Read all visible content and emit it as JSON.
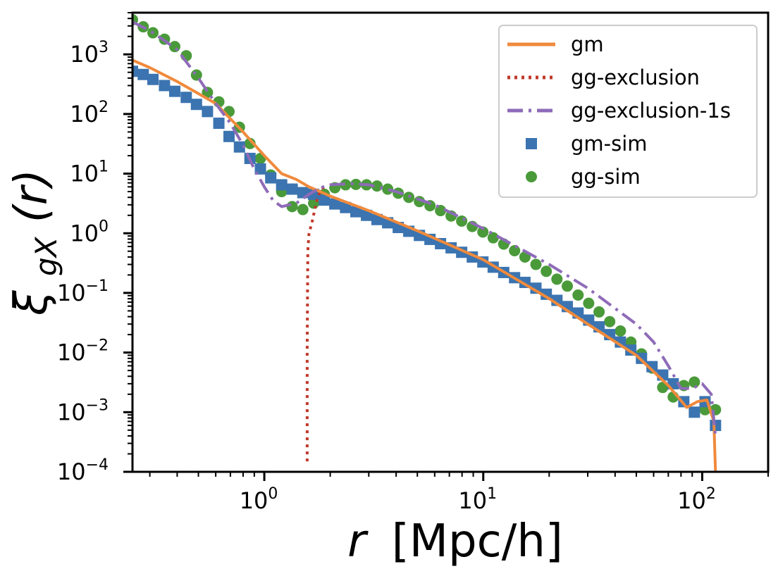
{
  "chart_data": {
    "type": "line",
    "title": "",
    "xlabel": "r [Mpc/h]",
    "xlabel_var": "r",
    "xlabel_units": "[Mpc/h]",
    "ylabel": "ξgX(r)",
    "ylabel_main": "ξ",
    "ylabel_sub": "gX",
    "ylabel_arg": "(r)",
    "xscale": "log",
    "yscale": "log",
    "xlim": [
      0.25,
      200
    ],
    "ylim": [
      0.0001,
      5000
    ],
    "legend_position": "top-right",
    "colors": {
      "gm": "#f08a3c",
      "gg_exclusion": "#c0392b",
      "gg_exclusion_1s": "#8e6bb8",
      "gm_sim": "#3b74b0",
      "gg_sim": "#4a9a3a"
    },
    "x_ticks": [
      {
        "base": "10",
        "exp": "0",
        "value": 1
      },
      {
        "base": "10",
        "exp": "1",
        "value": 10
      },
      {
        "base": "10",
        "exp": "2",
        "value": 100
      }
    ],
    "y_ticks": [
      {
        "base": "10",
        "exp": "3",
        "value": 1000
      },
      {
        "base": "10",
        "exp": "2",
        "value": 100
      },
      {
        "base": "10",
        "exp": "1",
        "value": 10
      },
      {
        "base": "10",
        "exp": "0",
        "value": 1
      },
      {
        "base": "10",
        "exp": "−1",
        "value": 0.1
      },
      {
        "base": "10",
        "exp": "−2",
        "value": 0.01
      },
      {
        "base": "10",
        "exp": "−3",
        "value": 0.001
      },
      {
        "base": "10",
        "exp": "−4",
        "value": 0.0001
      }
    ],
    "legend": [
      {
        "label": "gm",
        "key": "gm",
        "style": "solid"
      },
      {
        "label": "gg-exclusion",
        "key": "gg_exclusion",
        "style": "dotted"
      },
      {
        "label": "gg-exclusion-1s",
        "key": "gg_exclusion_1s",
        "style": "dashdot"
      },
      {
        "label": "gm-sim",
        "key": "gm_sim",
        "style": "square"
      },
      {
        "label": "gg-sim",
        "key": "gg_sim",
        "style": "circle"
      }
    ],
    "series": [
      {
        "name": "gm",
        "key": "gm",
        "kind": "line",
        "style": "solid",
        "x": [
          0.25,
          0.3,
          0.4,
          0.5,
          0.6,
          0.8,
          1.0,
          1.2,
          1.4,
          1.6,
          1.8,
          2,
          3,
          5,
          10,
          20,
          30,
          50,
          70,
          85,
          95,
          105,
          113,
          115
        ],
        "y": [
          800,
          600,
          350,
          220,
          150,
          50,
          20,
          10,
          8,
          6,
          5,
          4.2,
          2.4,
          1.1,
          0.36,
          0.08,
          0.03,
          0.009,
          0.0028,
          0.0012,
          0.0015,
          0.0016,
          0.0007,
          0.0001
        ]
      },
      {
        "name": "gg-exclusion",
        "key": "gg_exclusion",
        "kind": "line",
        "style": "dotted",
        "x": [
          1.57,
          1.57,
          1.575,
          1.58,
          1.6,
          1.65,
          1.7,
          1.75,
          1.8,
          1.85,
          1.9
        ],
        "y": [
          0.00015,
          0.01,
          0.1,
          0.5,
          1.0,
          1.5,
          2.5,
          4.0,
          5.0,
          5.8,
          6.2
        ]
      },
      {
        "name": "gg-exclusion-1s",
        "key": "gg_exclusion_1s",
        "kind": "line",
        "style": "dashdot",
        "x": [
          0.25,
          0.3,
          0.35,
          0.4,
          0.5,
          0.6,
          0.7,
          0.8,
          0.9,
          1.0,
          1.1,
          1.2,
          1.4,
          1.6,
          1.8,
          2,
          2.5,
          3,
          4,
          6,
          10,
          20,
          30,
          50,
          60,
          70,
          80,
          90,
          100,
          110,
          115
        ],
        "y": [
          3500,
          2500,
          1700,
          1200,
          400,
          150,
          70,
          30,
          12,
          6,
          3.5,
          2.8,
          3.2,
          4.5,
          5.8,
          6.5,
          6.8,
          6.5,
          5.0,
          3.0,
          1.2,
          0.3,
          0.12,
          0.03,
          0.015,
          0.006,
          0.0025,
          0.0025,
          0.003,
          0.002,
          0.0004
        ]
      },
      {
        "name": "gm-sim",
        "key": "gm_sim",
        "kind": "scatter",
        "marker": "square",
        "x": [
          0.25,
          0.28,
          0.31,
          0.35,
          0.39,
          0.44,
          0.49,
          0.55,
          0.62,
          0.69,
          0.77,
          0.86,
          0.96,
          1.07,
          1.2,
          1.34,
          1.5,
          1.68,
          1.88,
          2.1,
          2.35,
          2.62,
          2.93,
          3.27,
          3.66,
          4.09,
          4.57,
          5.11,
          5.71,
          6.38,
          7.13,
          7.97,
          8.91,
          9.96,
          11.1,
          12.4,
          13.9,
          15.5,
          17.4,
          19.4,
          21.7,
          24.2,
          27.1,
          30.3,
          33.8,
          37.8,
          42.3,
          47.2,
          52.8,
          59,
          66,
          73.7,
          82.4,
          92.1,
          103,
          115
        ],
        "y": [
          520,
          460,
          380,
          300,
          240,
          190,
          145,
          110,
          70,
          42,
          28,
          18,
          12,
          8.5,
          6.5,
          5.5,
          4.8,
          4.5,
          3.6,
          3.1,
          2.7,
          2.3,
          2.0,
          1.7,
          1.5,
          1.25,
          1.08,
          0.92,
          0.79,
          0.67,
          0.57,
          0.48,
          0.4,
          0.33,
          0.27,
          0.22,
          0.18,
          0.15,
          0.12,
          0.095,
          0.075,
          0.059,
          0.046,
          0.035,
          0.027,
          0.02,
          0.015,
          0.011,
          0.008,
          0.0058,
          0.0042,
          0.003,
          0.0015,
          0.001,
          0.0015,
          0.0006
        ]
      },
      {
        "name": "gg-sim",
        "key": "gg_sim",
        "kind": "scatter",
        "marker": "circle",
        "x": [
          0.25,
          0.28,
          0.31,
          0.35,
          0.39,
          0.44,
          0.49,
          0.55,
          0.62,
          0.69,
          0.77,
          0.86,
          0.96,
          1.07,
          1.2,
          1.34,
          1.5,
          1.68,
          1.88,
          2.1,
          2.35,
          2.62,
          2.93,
          3.27,
          3.66,
          4.09,
          4.57,
          5.11,
          5.71,
          6.38,
          7.13,
          7.97,
          8.91,
          9.96,
          11.1,
          12.4,
          13.9,
          15.5,
          17.4,
          19.4,
          21.7,
          24.2,
          27.1,
          30.3,
          33.8,
          37.8,
          42.3,
          47.2,
          52.8,
          59,
          66,
          73.7,
          82.4,
          92.1,
          103,
          115
        ],
        "y": [
          3800,
          2900,
          2300,
          1800,
          1350,
          950,
          450,
          230,
          160,
          110,
          60,
          32,
          18,
          9.5,
          5,
          2.8,
          2.5,
          3.2,
          4.5,
          5.8,
          6.5,
          6.6,
          6.5,
          6.2,
          5.5,
          4.7,
          4.0,
          3.4,
          2.9,
          2.4,
          1.95,
          1.6,
          1.3,
          1.05,
          0.84,
          0.66,
          0.51,
          0.4,
          0.3,
          0.23,
          0.17,
          0.13,
          0.092,
          0.067,
          0.048,
          0.033,
          0.023,
          0.015,
          0.0095,
          0.0055,
          0.0026,
          0.0018,
          0.0028,
          0.0032,
          0.0011,
          0.0011
        ]
      }
    ]
  }
}
